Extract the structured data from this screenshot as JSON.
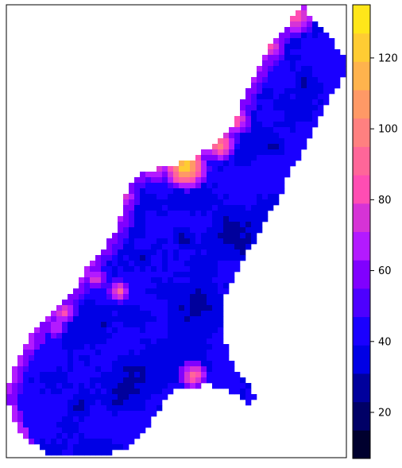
{
  "map": {
    "type": "raster_map",
    "palette": [
      "#000033",
      "#000066",
      "#0000aa",
      "#0000ff",
      "#2200ff",
      "#4400ff",
      "#6600ff",
      "#9900ff",
      "#bb22ee",
      "#dd44cc",
      "#ff55aa",
      "#ff7788",
      "#ff9966",
      "#ffbb44",
      "#ffdd22",
      "#ffff44",
      "#ffff66"
    ],
    "background": "#ffffff"
  },
  "colorbar": {
    "min": 7,
    "max": 135,
    "ticks": [
      {
        "value": 20,
        "label": "20"
      },
      {
        "value": 40,
        "label": "40"
      },
      {
        "value": 60,
        "label": "60"
      },
      {
        "value": 80,
        "label": "80"
      },
      {
        "value": 100,
        "label": "100"
      },
      {
        "value": 120,
        "label": "120"
      }
    ],
    "levels": [
      {
        "from": 7,
        "to": 15,
        "color": "#00002e"
      },
      {
        "from": 15,
        "to": 23,
        "color": "#000066"
      },
      {
        "from": 23,
        "to": 31,
        "color": "#00009c"
      },
      {
        "from": 31,
        "to": 39,
        "color": "#0000e5"
      },
      {
        "from": 39,
        "to": 47,
        "color": "#1a00ff"
      },
      {
        "from": 47,
        "to": 55,
        "color": "#4d00ff"
      },
      {
        "from": 55,
        "to": 63,
        "color": "#8000ff"
      },
      {
        "from": 63,
        "to": 71,
        "color": "#b31aff"
      },
      {
        "from": 71,
        "to": 79,
        "color": "#d633d6"
      },
      {
        "from": 79,
        "to": 87,
        "color": "#ff4db3"
      },
      {
        "from": 87,
        "to": 95,
        "color": "#ff6699"
      },
      {
        "from": 95,
        "to": 103,
        "color": "#ff8080"
      },
      {
        "from": 103,
        "to": 111,
        "color": "#ff9966"
      },
      {
        "from": 111,
        "to": 119,
        "color": "#ffb34d"
      },
      {
        "from": 119,
        "to": 127,
        "color": "#ffcc33"
      },
      {
        "from": 127,
        "to": 135,
        "color": "#ffe61a"
      },
      {
        "from": 135,
        "to": 143,
        "color": "#ffff4d"
      }
    ]
  }
}
